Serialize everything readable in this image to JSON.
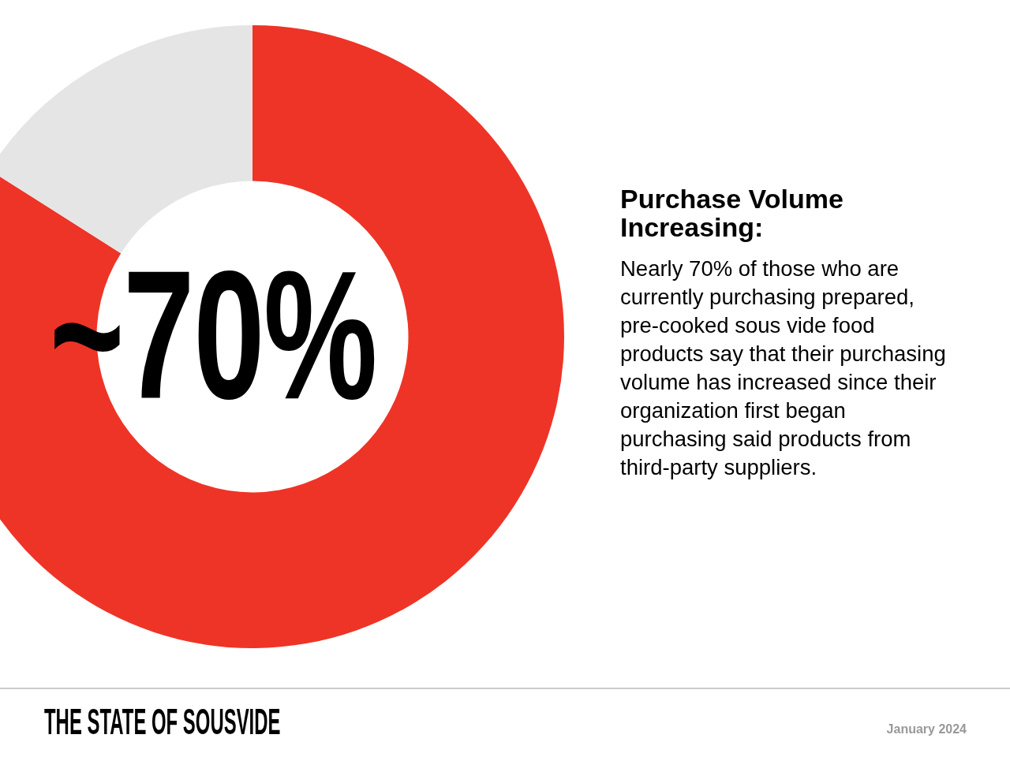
{
  "chart_data": {
    "type": "donut",
    "title": "Purchase Volume Increasing:",
    "subtitle": "Nearly 70% of those who are currently purchasing prepared, pre-cooked sous vide food products say that their purchasing volume has increased since their organization first began purchasing said products from third-party suppliers.",
    "categories": [
      null,
      null
    ],
    "values": [
      84,
      16
    ],
    "colors": [
      "#ee3427",
      "#e5e5e5"
    ],
    "annotations": [
      "~70%",
      "THE STATE OF SOUSVIDE",
      "January 2024"
    ]
  }
}
